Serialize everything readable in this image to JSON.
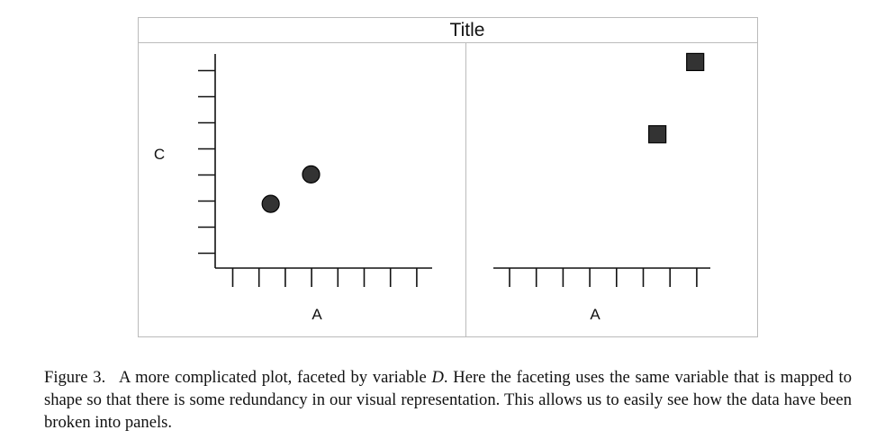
{
  "chart_data": {
    "type": "scatter",
    "title": "Title",
    "xlabel": "A",
    "ylabel": "C",
    "facet_variable": "D",
    "grid": false,
    "panels": [
      {
        "shape": "circle",
        "x_ticks": [
          1,
          2,
          3,
          4,
          5,
          6,
          7,
          8
        ],
        "y_ticks": [
          1,
          2,
          3,
          4,
          5,
          6,
          7,
          8
        ],
        "x": [
          2.2,
          3.8
        ],
        "y": [
          2.4,
          3.5
        ],
        "xlim": [
          0,
          8.6
        ],
        "ylim": [
          0,
          8.0
        ],
        "show_y_axis": true
      },
      {
        "shape": "square",
        "x_ticks": [
          1,
          2,
          3,
          4,
          5,
          6,
          7,
          8
        ],
        "x": [
          6.5,
          8.0
        ],
        "y": [
          5.0,
          7.7
        ],
        "xlim": [
          0,
          8.6
        ],
        "ylim": [
          0,
          8.0
        ],
        "show_y_axis": false
      }
    ],
    "marker_color": "#333333"
  },
  "caption": {
    "label": "Figure 3.",
    "text_before": "A more complicated plot, faceted by variable ",
    "variable": "D",
    "text_after": ". Here the faceting uses the same variable that is mapped to shape so that there is some redundancy in our visual representation. This allows us to easily see how the data have been broken into panels."
  }
}
